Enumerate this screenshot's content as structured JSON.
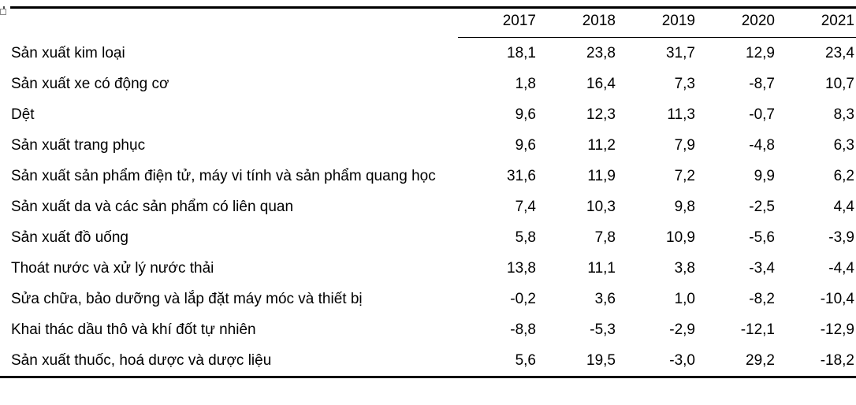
{
  "page": {
    "background": "#ffffff",
    "text_color": "#000000",
    "rule_color": "#000000"
  },
  "icons": {
    "table_handle": "table-move-handle"
  },
  "table": {
    "header": {
      "corner_label": "",
      "years": [
        "2017",
        "2018",
        "2019",
        "2020",
        "2021"
      ]
    },
    "rows": [
      {
        "label": "Sản xuất kim loại",
        "values": [
          "18,1",
          "23,8",
          "31,7",
          "12,9",
          "23,4"
        ]
      },
      {
        "label": "Sản xuất xe có động cơ",
        "values": [
          "1,8",
          "16,4",
          "7,3",
          "-8,7",
          "10,7"
        ]
      },
      {
        "label": "Dệt",
        "values": [
          "9,6",
          "12,3",
          "11,3",
          "-0,7",
          "8,3"
        ]
      },
      {
        "label": "Sản xuất trang phục",
        "values": [
          "9,6",
          "11,2",
          "7,9",
          "-4,8",
          "6,3"
        ]
      },
      {
        "label": "Sản xuất sản phẩm điện tử, máy vi tính và sản phẩm quang học",
        "values": [
          "31,6",
          "11,9",
          "7,2",
          "9,9",
          "6,2"
        ]
      },
      {
        "label": "Sản xuất da và các sản phẩm có liên quan",
        "values": [
          "7,4",
          "10,3",
          "9,8",
          "-2,5",
          "4,4"
        ]
      },
      {
        "label": "Sản xuất đồ uống",
        "values": [
          "5,8",
          "7,8",
          "10,9",
          "-5,6",
          "-3,9"
        ]
      },
      {
        "label": "Thoát nước và xử lý nước thải",
        "values": [
          "13,8",
          "11,1",
          "3,8",
          "-3,4",
          "-4,4"
        ]
      },
      {
        "label": "Sửa chữa, bảo dưỡng và lắp đặt máy móc và thiết bị",
        "values": [
          "-0,2",
          "3,6",
          "1,0",
          "-8,2",
          "-10,4"
        ]
      },
      {
        "label": "Khai thác dầu thô và khí đốt tự nhiên",
        "values": [
          "-8,8",
          "-5,3",
          "-2,9",
          "-12,1",
          "-12,9"
        ]
      },
      {
        "label": "Sản xuất thuốc, hoá dược và dược liệu",
        "values": [
          "5,6",
          "19,5",
          "-3,0",
          "29,2",
          "-18,2"
        ]
      }
    ]
  },
  "chart_data": {
    "type": "table",
    "title": "",
    "columns": [
      "2017",
      "2018",
      "2019",
      "2020",
      "2021"
    ],
    "row_labels": [
      "Sản xuất kim loại",
      "Sản xuất xe có động cơ",
      "Dệt",
      "Sản xuất trang phục",
      "Sản xuất sản phẩm điện tử, máy vi tính và sản phẩm quang học",
      "Sản xuất da và các sản phẩm có liên quan",
      "Sản xuất đồ uống",
      "Thoát nước và xử lý nước thải",
      "Sửa chữa, bảo dưỡng và lắp đặt máy móc và thiết bị",
      "Khai thác dầu thô và khí đốt tự nhiên",
      "Sản xuất thuốc, hoá dược và dược liệu"
    ],
    "values": [
      [
        18.1,
        23.8,
        31.7,
        12.9,
        23.4
      ],
      [
        1.8,
        16.4,
        7.3,
        -8.7,
        10.7
      ],
      [
        9.6,
        12.3,
        11.3,
        -0.7,
        8.3
      ],
      [
        9.6,
        11.2,
        7.9,
        -4.8,
        6.3
      ],
      [
        31.6,
        11.9,
        7.2,
        9.9,
        6.2
      ],
      [
        7.4,
        10.3,
        9.8,
        -2.5,
        4.4
      ],
      [
        5.8,
        7.8,
        10.9,
        -5.6,
        -3.9
      ],
      [
        13.8,
        11.1,
        3.8,
        -3.4,
        -4.4
      ],
      [
        -0.2,
        3.6,
        1.0,
        -8.2,
        -10.4
      ],
      [
        -8.8,
        -5.3,
        -2.9,
        -12.1,
        -12.9
      ],
      [
        5.6,
        19.5,
        -3.0,
        29.2,
        -18.2
      ]
    ],
    "decimal_separator": ",",
    "notes": "grid off except top rule, header underline under year columns, bottom rule"
  }
}
